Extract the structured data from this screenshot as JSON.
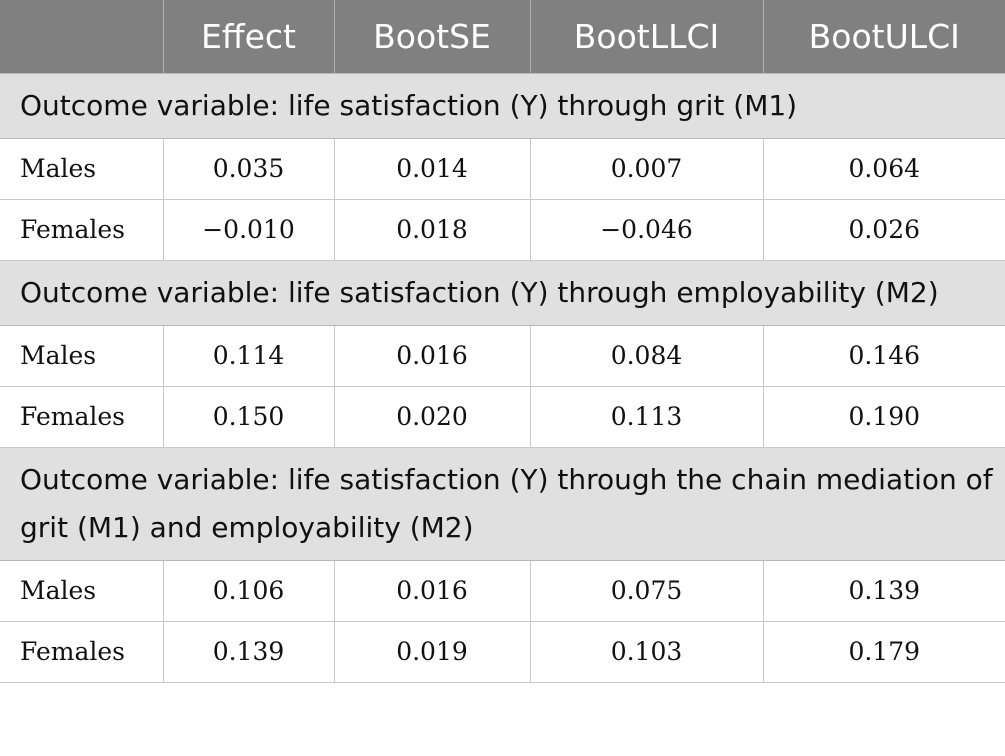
{
  "table": {
    "headers": [
      "",
      "Effect",
      "BootSE",
      "BootLLCI",
      "BootULCI"
    ],
    "sections": [
      {
        "title": "Outcome variable: life satisfaction (Y) through grit (M1)",
        "rows": [
          {
            "group": "Males",
            "effect": "0.035",
            "bootse": "0.014",
            "bootllci": "0.007",
            "bootulci": "0.064"
          },
          {
            "group": "Females",
            "effect": "−0.010",
            "bootse": "0.018",
            "bootllci": "−0.046",
            "bootulci": "0.026"
          }
        ]
      },
      {
        "title": "Outcome variable: life satisfaction (Y) through employability (M2)",
        "rows": [
          {
            "group": "Males",
            "effect": "0.114",
            "bootse": "0.016",
            "bootllci": "0.084",
            "bootulci": "0.146"
          },
          {
            "group": "Females",
            "effect": "0.150",
            "bootse": "0.020",
            "bootllci": "0.113",
            "bootulci": "0.190"
          }
        ]
      },
      {
        "title": "Outcome variable: life satisfaction (Y) through the chain mediation of grit (M1) and employability (M2)",
        "rows": [
          {
            "group": "Males",
            "effect": "0.106",
            "bootse": "0.016",
            "bootllci": "0.075",
            "bootulci": "0.139"
          },
          {
            "group": "Females",
            "effect": "0.139",
            "bootse": "0.019",
            "bootllci": "0.103",
            "bootulci": "0.179"
          }
        ]
      }
    ]
  }
}
